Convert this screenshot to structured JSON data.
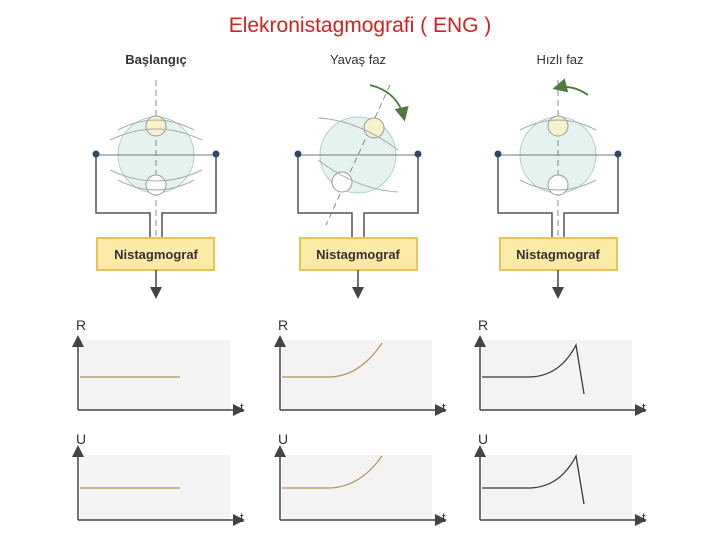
{
  "title": "Elekronistagmografi ( ENG )",
  "panels": [
    {
      "phase_label": "Başlangıç",
      "box_label": "Nistagmograf"
    },
    {
      "phase_label": "Yavaş faz",
      "box_label": "Nistagmograf"
    },
    {
      "phase_label": "Hızlı faz",
      "box_label": "Nistagmograf"
    }
  ],
  "graphs": {
    "row1_ylabel": "R",
    "row2_ylabel": "U",
    "xlabel": "t"
  },
  "colors": {
    "title": "#d42020",
    "box_fill": "#fbe9a6",
    "box_border": "#e9c25a",
    "electrode": "#2c4a6a",
    "trace_flat": "#b8925a",
    "trace_rise": "#3a3a3a"
  }
}
